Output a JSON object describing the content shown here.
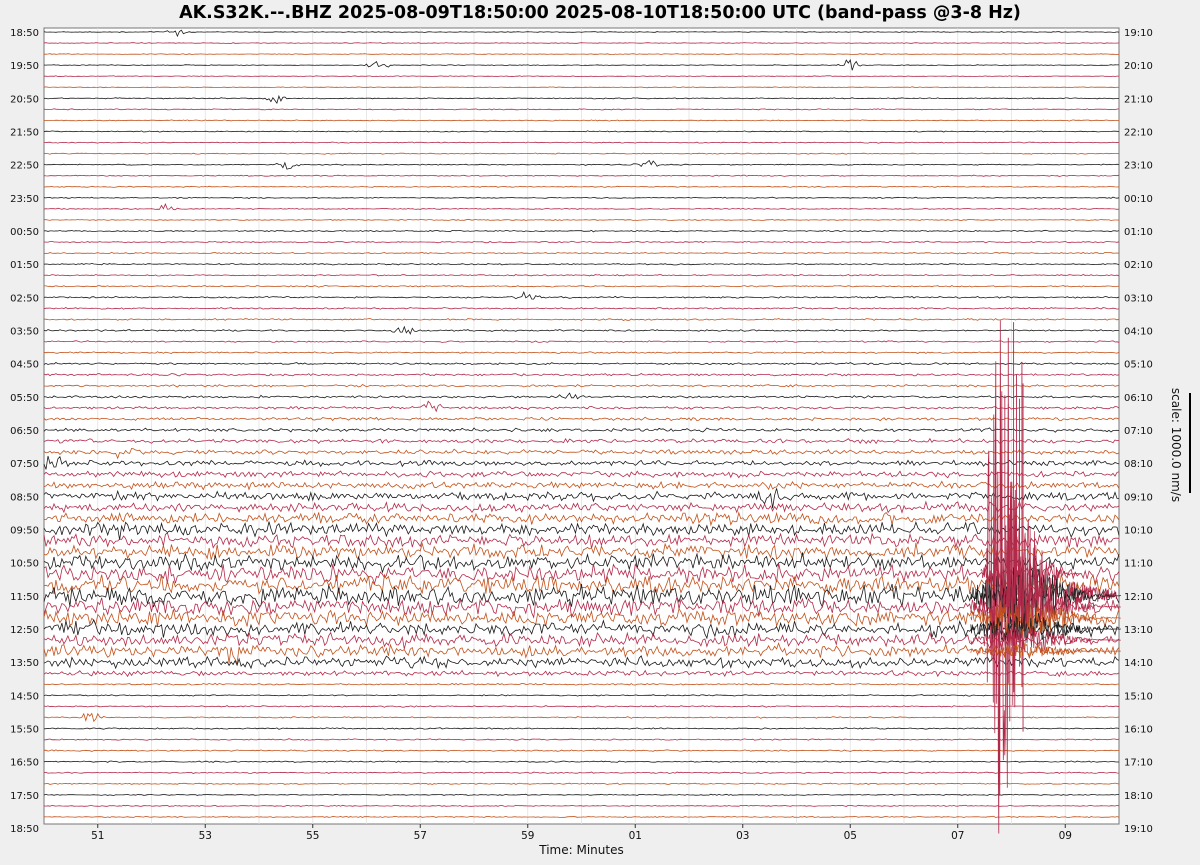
{
  "chart_data": {
    "type": "helicorder",
    "title": "AK.S32K.--.BHZ 2025-08-09T18:50:00 2025-08-10T18:50:00 UTC (band-pass @3-8 Hz)",
    "xlabel": "Time: Minutes",
    "scale_label": "scale: 1000.0 nm/s",
    "x_ticks": [
      "51",
      "53",
      "55",
      "57",
      "59",
      "01",
      "03",
      "05",
      "07",
      "09"
    ],
    "left_hour_labels": [
      "18:50",
      "19:50",
      "20:50",
      "21:50",
      "22:50",
      "23:50",
      "00:50",
      "01:50",
      "02:50",
      "03:50",
      "04:50",
      "05:50",
      "06:50",
      "07:50",
      "08:50",
      "09:50",
      "10:50",
      "11:50",
      "12:50",
      "13:50",
      "14:50",
      "15:50",
      "16:50",
      "17:50",
      "18:50"
    ],
    "right_hour_labels": [
      "19:10",
      "20:10",
      "21:10",
      "22:10",
      "23:10",
      "00:10",
      "01:10",
      "02:10",
      "03:10",
      "04:10",
      "05:10",
      "06:10",
      "07:10",
      "08:10",
      "09:10",
      "10:10",
      "11:10",
      "12:10",
      "13:10",
      "14:10",
      "15:10",
      "16:10",
      "17:10",
      "18:10",
      "19:10"
    ],
    "lines_per_hour": 3,
    "minutes_per_line": 20,
    "trace_colors": [
      "#1a1a1a",
      "#b22a4a",
      "#c2521b"
    ],
    "noise_by_line": [
      0.3,
      0.3,
      0.3,
      0.3,
      0.3,
      0.3,
      0.4,
      0.4,
      0.4,
      0.4,
      0.4,
      0.4,
      0.4,
      0.4,
      0.4,
      0.4,
      0.4,
      0.4,
      0.5,
      0.5,
      0.5,
      0.5,
      0.5,
      0.5,
      0.6,
      0.6,
      0.6,
      0.6,
      0.6,
      0.6,
      0.7,
      0.8,
      0.8,
      0.9,
      1.0,
      1.1,
      1.3,
      1.5,
      1.7,
      2.0,
      2.3,
      2.6,
      3.0,
      3.5,
      4.0,
      4.5,
      5.0,
      5.5,
      6.0,
      6.5,
      7.0,
      7.5,
      6.5,
      6.0,
      5.5,
      5.0,
      4.5,
      4.0,
      2.0,
      0.6,
      0.5,
      0.5,
      0.5,
      0.5,
      0.5,
      0.5,
      0.5,
      0.5,
      0.5,
      0.4,
      0.4,
      0.4
    ],
    "earthquake": {
      "line": 50,
      "minute": 7.8,
      "duration_minutes": 2.8,
      "peak_amplitude_nm_s": 5000
    },
    "events": [
      {
        "line": 0,
        "minute": 52.5,
        "amp": 5
      },
      {
        "line": 3,
        "minute": 56.2,
        "amp": 5
      },
      {
        "line": 3,
        "minute": 5.0,
        "amp": 6
      },
      {
        "line": 6,
        "minute": 54.3,
        "amp": 6
      },
      {
        "line": 12,
        "minute": 54.5,
        "amp": 6
      },
      {
        "line": 12,
        "minute": 1.2,
        "amp": 6
      },
      {
        "line": 16,
        "minute": 52.3,
        "amp": 6
      },
      {
        "line": 24,
        "minute": 59.0,
        "amp": 5
      },
      {
        "line": 27,
        "minute": 56.7,
        "amp": 5
      },
      {
        "line": 33,
        "minute": 59.7,
        "amp": 5
      },
      {
        "line": 34,
        "minute": 57.2,
        "amp": 6
      },
      {
        "line": 38,
        "minute": 51.5,
        "amp": 6
      },
      {
        "line": 39,
        "minute": 50.2,
        "amp": 6
      },
      {
        "line": 42,
        "minute": 3.5,
        "amp": 7
      },
      {
        "line": 45,
        "minute": 51.5,
        "amp": 5
      },
      {
        "line": 55,
        "minute": 56.5,
        "amp": 6
      },
      {
        "line": 56,
        "minute": 53.5,
        "amp": 7
      },
      {
        "line": 62,
        "minute": 50.9,
        "amp": 6
      }
    ]
  }
}
